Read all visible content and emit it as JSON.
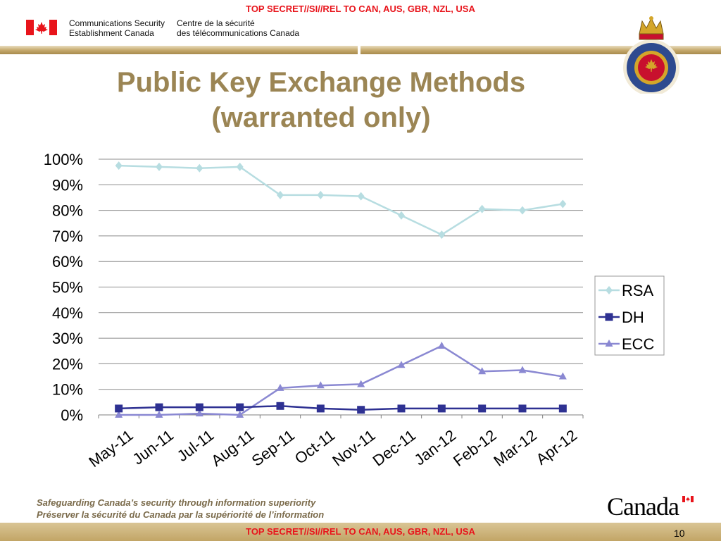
{
  "classification_top": "TOP SECRET//SI//REL TO CAN, AUS, GBR, NZL, USA",
  "classification_bottom": "TOP SECRET//SI//REL TO CAN, AUS, GBR, NZL, USA",
  "header": {
    "org_en_line1": "Communications Security",
    "org_en_line2": "Establishment Canada",
    "org_fr_line1": "Centre de la sécurité",
    "org_fr_line2": "des télécommunications Canada",
    "seal_icon": "cse-crest-seal-icon",
    "flag_icon": "canada-flag-icon"
  },
  "slide": {
    "title_line1": "Public Key Exchange Methods",
    "title_line2": "(warranted only)",
    "page_number": "10"
  },
  "footer": {
    "tagline_en": "Safeguarding Canada’s security through information superiority",
    "tagline_fr": "Préserver la sécurité du Canada par la supériorité de l’information",
    "wordmark": "Canada"
  },
  "colors": {
    "classification": "#e8141b",
    "title": "#9b8554",
    "rsa": "#b7dde1",
    "dh": "#2e3192",
    "ecc": "#8a88d2",
    "band": "#c7ab6f"
  },
  "chart_data": {
    "type": "line",
    "categories": [
      "May-11",
      "Jun-11",
      "Jul-11",
      "Aug-11",
      "Sep-11",
      "Oct-11",
      "Nov-11",
      "Dec-11",
      "Jan-12",
      "Feb-12",
      "Mar-12",
      "Apr-12"
    ],
    "y_ticks": [
      "0%",
      "10%",
      "20%",
      "30%",
      "40%",
      "50%",
      "60%",
      "70%",
      "80%",
      "90%",
      "100%"
    ],
    "ylim": [
      0,
      100
    ],
    "grid": true,
    "legend_position": "right",
    "series": [
      {
        "name": "RSA",
        "marker": "diamond",
        "values": [
          97.5,
          97,
          96.5,
          97,
          86,
          86,
          85.5,
          78,
          70.5,
          80.5,
          80,
          82.5
        ]
      },
      {
        "name": "DH",
        "marker": "square",
        "values": [
          2.5,
          3,
          3,
          3,
          3.5,
          2.5,
          2,
          2.5,
          2.5,
          2.5,
          2.5,
          2.5
        ]
      },
      {
        "name": "ECC",
        "marker": "triangle",
        "values": [
          0,
          0,
          0.5,
          0,
          10.5,
          11.5,
          12,
          19.5,
          27,
          17,
          17.5,
          15
        ]
      }
    ]
  }
}
